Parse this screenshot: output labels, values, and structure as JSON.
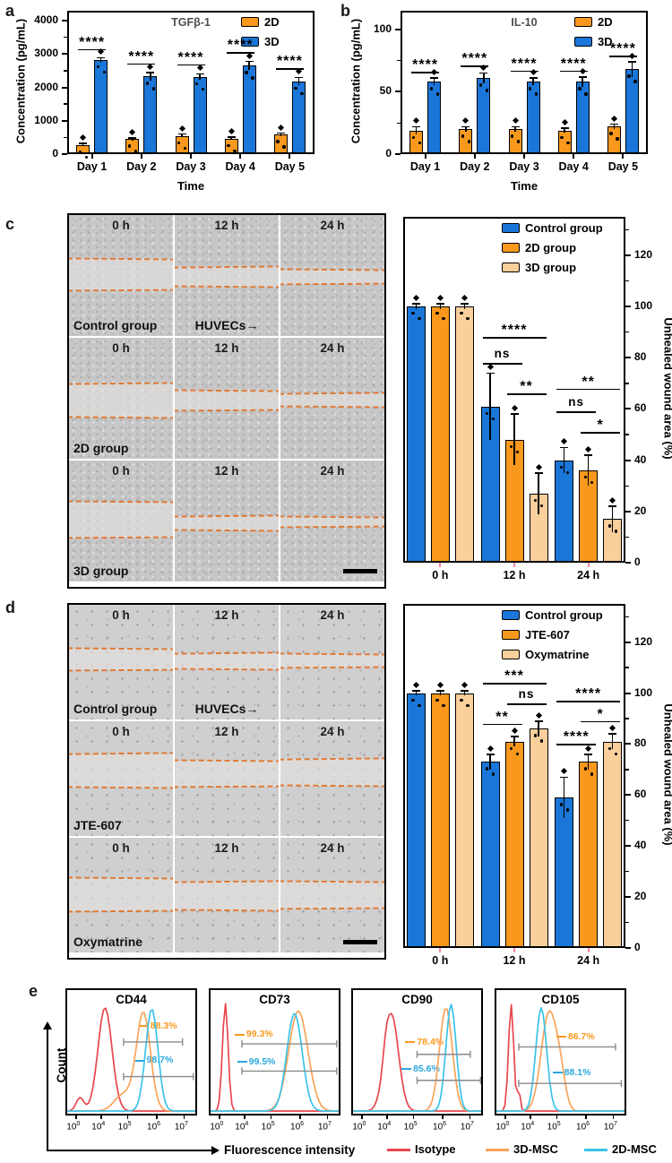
{
  "panels": {
    "a": "a",
    "b": "b",
    "c": "c",
    "d": "d",
    "e": "e"
  },
  "chart_data": {
    "tgfb1": {
      "type": "bar",
      "title": "TGFβ-1",
      "ylabel": "Concentration (pg/mL)",
      "xlabel": "Time",
      "categories": [
        "Day 1",
        "Day 2",
        "Day 3",
        "Day 4",
        "Day 5"
      ],
      "yticks": [
        0,
        1000,
        2000,
        3000,
        4000
      ],
      "ylim": [
        0,
        4300
      ],
      "minor": 500,
      "series": [
        {
          "name": "2D",
          "color": "#F8981D",
          "values": [
            280,
            450,
            550,
            470,
            580
          ],
          "errs": [
            40,
            40,
            50,
            40,
            50
          ]
        },
        {
          "name": "3D",
          "color": "#1A76D8",
          "values": [
            2820,
            2330,
            2320,
            2650,
            2180
          ],
          "errs": [
            70,
            120,
            90,
            130,
            120
          ]
        }
      ],
      "sig": [
        {
          "cat": 0,
          "y": 3150,
          "label": "****"
        },
        {
          "cat": 1,
          "y": 2720,
          "label": "****"
        },
        {
          "cat": 2,
          "y": 2700,
          "label": "****"
        },
        {
          "cat": 3,
          "y": 3060,
          "label": "****"
        },
        {
          "cat": 4,
          "y": 2580,
          "label": "****"
        }
      ]
    },
    "il10": {
      "type": "bar",
      "title": "IL-10",
      "ylabel": "Concentration (pg/mL)",
      "xlabel": "Time",
      "categories": [
        "Day 1",
        "Day 2",
        "Day 3",
        "Day 4",
        "Day 5"
      ],
      "yticks": [
        0,
        50,
        100
      ],
      "ylim": [
        0,
        115
      ],
      "minor": 25,
      "series": [
        {
          "name": "2D",
          "color": "#F8981D",
          "values": [
            19,
            20,
            20,
            19,
            22
          ],
          "errs": [
            3,
            2,
            2,
            2,
            2
          ]
        },
        {
          "name": "3D",
          "color": "#1A76D8",
          "values": [
            58,
            61,
            58,
            58,
            68
          ],
          "errs": [
            3,
            4,
            3,
            4,
            6
          ]
        }
      ],
      "sig": [
        {
          "cat": 0,
          "y": 66,
          "label": "****"
        },
        {
          "cat": 1,
          "y": 71,
          "label": "****"
        },
        {
          "cat": 2,
          "y": 67,
          "label": "****"
        },
        {
          "cat": 3,
          "y": 67,
          "label": "****"
        },
        {
          "cat": 4,
          "y": 79,
          "label": "****"
        }
      ]
    },
    "wound_msc": {
      "type": "bar",
      "ylabel": "Unhealed wound area (%)",
      "categories": [
        "0 h",
        "12 h",
        "24 h"
      ],
      "yticks": [
        0,
        20,
        40,
        60,
        80,
        100,
        120
      ],
      "ylim": [
        0,
        135
      ],
      "minor": 10,
      "series": [
        {
          "name": "Control group",
          "color": "#1A76D8",
          "values": [
            100,
            61,
            40
          ],
          "errs": [
            1,
            13,
            5
          ]
        },
        {
          "name": "2D group",
          "color": "#F8981D",
          "values": [
            100,
            48,
            36
          ],
          "errs": [
            1,
            10,
            6
          ]
        },
        {
          "name": "3D group",
          "color": "#F9CF9B",
          "values": [
            100,
            27,
            17
          ],
          "errs": [
            1,
            8,
            5
          ]
        }
      ],
      "sig": [
        {
          "cat": 1,
          "from": 0,
          "to": 2,
          "y": 88,
          "label": "****"
        },
        {
          "cat": 1,
          "from": 0,
          "to": 1,
          "y": 78,
          "label": "ns"
        },
        {
          "cat": 1,
          "from": 1,
          "to": 2,
          "y": 66,
          "label": "**"
        },
        {
          "cat": 2,
          "from": 0,
          "to": 2,
          "y": 68,
          "label": "**"
        },
        {
          "cat": 2,
          "from": 0,
          "to": 1,
          "y": 59,
          "label": "ns"
        },
        {
          "cat": 2,
          "from": 1,
          "to": 2,
          "y": 51,
          "label": "*"
        }
      ]
    },
    "wound_drug": {
      "type": "bar",
      "ylabel": "Unhealed wound area (%)",
      "categories": [
        "0 h",
        "12 h",
        "24 h"
      ],
      "yticks": [
        0,
        20,
        40,
        60,
        80,
        100,
        120
      ],
      "ylim": [
        0,
        135
      ],
      "minor": 10,
      "series": [
        {
          "name": "Control group",
          "color": "#1A76D8",
          "values": [
            100,
            73,
            59
          ],
          "errs": [
            1,
            3,
            8
          ]
        },
        {
          "name": "JTE-607",
          "color": "#F8981D",
          "values": [
            100,
            81,
            73
          ],
          "errs": [
            1,
            2,
            3
          ]
        },
        {
          "name": "Oxymatrine",
          "color": "#F9CF9B",
          "values": [
            100,
            86,
            81
          ],
          "errs": [
            1,
            3,
            3
          ]
        }
      ],
      "sig": [
        {
          "cat": 1,
          "from": 0,
          "to": 2,
          "y": 104,
          "label": "***"
        },
        {
          "cat": 1,
          "from": 1,
          "to": 2,
          "y": 96,
          "label": "ns"
        },
        {
          "cat": 1,
          "from": 0,
          "to": 1,
          "y": 88,
          "label": "**"
        },
        {
          "cat": 2,
          "from": 0,
          "to": 2,
          "y": 97,
          "label": "****"
        },
        {
          "cat": 2,
          "from": 1,
          "to": 2,
          "y": 89,
          "label": "*"
        },
        {
          "cat": 2,
          "from": 0,
          "to": 1,
          "y": 80,
          "label": "****"
        }
      ]
    },
    "flow_cytometry": {
      "type": "line",
      "ylabel": "Count",
      "xlabel": "Fluorescence intensity",
      "tick_exponents": [
        "0",
        "4",
        "5",
        "6",
        "7"
      ],
      "legend": [
        {
          "name": "Isotype",
          "color": "#E8484E"
        },
        {
          "name": "3D-MSC",
          "color": "#F9A45B"
        },
        {
          "name": "2D-MSC",
          "color": "#3BC3E8"
        }
      ],
      "panels": [
        {
          "marker": "CD44",
          "g3": {
            "pct": "88.3%",
            "x1": 0.44,
            "x2": 0.9,
            "y": 0.42,
            "lx": 0.67,
            "ly": 0.295
          },
          "g2": {
            "pct": "98.7%",
            "x1": 0.44,
            "x2": 0.985,
            "y": 0.7,
            "lx": 0.64,
            "ly": 0.575
          },
          "curves": [
            {
              "color": "#E8484E",
              "mean": 0.295,
              "sig": 0.055,
              "amp": 0.93,
              "m2": 0.1,
              "s2": 0.03,
              "a2": 0.12
            },
            {
              "color": "#F9A45B",
              "mean": 0.595,
              "sig": 0.055,
              "amp": 0.88,
              "m2": 0.44,
              "s2": 0.07,
              "a2": 0.15
            },
            {
              "color": "#3BC3E8",
              "mean": 0.66,
              "sig": 0.048,
              "amp": 0.92
            }
          ]
        },
        {
          "marker": "CD73",
          "g3": {
            "pct": "99.3%",
            "x1": 0.245,
            "x2": 0.985,
            "y": 0.435,
            "lx": 0.3,
            "ly": 0.365
          },
          "g2": {
            "pct": "99.5%",
            "x1": 0.245,
            "x2": 0.985,
            "y": 0.655,
            "lx": 0.32,
            "ly": 0.585
          },
          "curves": [
            {
              "color": "#E8484E",
              "mean": 0.115,
              "sig": 0.022,
              "amp": 0.97
            },
            {
              "color": "#F9A45B",
              "mean": 0.685,
              "sig": 0.075,
              "amp": 0.9
            },
            {
              "color": "#3BC3E8",
              "mean": 0.655,
              "sig": 0.06,
              "amp": 0.88
            }
          ]
        },
        {
          "marker": "CD90",
          "g3": {
            "pct": "78.4%",
            "x1": 0.5,
            "x2": 0.915,
            "y": 0.52,
            "lx": 0.52,
            "ly": 0.425
          },
          "g2": {
            "pct": "85.6%",
            "x1": 0.5,
            "x2": 0.995,
            "y": 0.73,
            "lx": 0.49,
            "ly": 0.645
          },
          "curves": [
            {
              "color": "#E8484E",
              "mean": 0.3,
              "sig": 0.055,
              "amp": 0.87,
              "m2": 0.255,
              "s2": 0.02,
              "a2": 0.1
            },
            {
              "color": "#F9A45B",
              "mean": 0.725,
              "sig": 0.05,
              "amp": 0.93
            },
            {
              "color": "#3BC3E8",
              "mean": 0.765,
              "sig": 0.04,
              "amp": 0.96
            }
          ]
        },
        {
          "marker": "CD105",
          "g3": {
            "pct": "86.7%",
            "x1": 0.175,
            "x2": 0.93,
            "y": 0.46,
            "lx": 0.58,
            "ly": 0.385
          },
          "g2": {
            "pct": "88.1%",
            "x1": 0.175,
            "x2": 0.975,
            "y": 0.755,
            "lx": 0.55,
            "ly": 0.675
          },
          "curves": [
            {
              "color": "#E8484E",
              "mean": 0.115,
              "sig": 0.02,
              "amp": 0.96,
              "m2": 0.175,
              "s2": 0.012,
              "a2": 0.18
            },
            {
              "color": "#F9A45B",
              "mean": 0.41,
              "sig": 0.06,
              "amp": 0.88,
              "m2": 0.5,
              "s2": 0.04,
              "a2": 0.25
            },
            {
              "color": "#3BC3E8",
              "mean": 0.35,
              "sig": 0.042,
              "amp": 0.93
            }
          ]
        }
      ]
    }
  },
  "micro_c": {
    "cells_label": "HUVECs",
    "cells_arrow": "→",
    "rows": [
      {
        "group": "Control group",
        "huvecs": true,
        "tiles": [
          {
            "time": "0 h",
            "l1": 36,
            "l2": 62
          },
          {
            "time": "12 h",
            "l1": 43,
            "l2": 59
          },
          {
            "time": "24 h",
            "l1": 45,
            "l2": 57
          }
        ]
      },
      {
        "group": "2D group",
        "tiles": [
          {
            "time": "0 h",
            "l1": 38,
            "l2": 66
          },
          {
            "time": "12 h",
            "l1": 44,
            "l2": 60
          },
          {
            "time": "24 h",
            "l1": 46,
            "l2": 57
          }
        ]
      },
      {
        "group": "3D group",
        "scalebar": true,
        "tiles": [
          {
            "time": "0 h",
            "l1": 34,
            "l2": 64
          },
          {
            "time": "12 h",
            "l1": 46,
            "l2": 58
          },
          {
            "time": "24 h",
            "l1": 47,
            "l2": 55
          }
        ]
      }
    ]
  },
  "micro_d": {
    "cells_label": "HUVECs",
    "cells_arrow": "→",
    "rows": [
      {
        "group": "Control group",
        "huvecs": true,
        "tiles": [
          {
            "time": "0 h",
            "l1": 38,
            "l2": 57
          },
          {
            "time": "12 h",
            "l1": 42,
            "l2": 56
          },
          {
            "time": "24 h",
            "l1": 43,
            "l2": 55
          }
        ]
      },
      {
        "group": "JTE-607",
        "tiles": [
          {
            "time": "0 h",
            "l1": 28,
            "l2": 58
          },
          {
            "time": "12 h",
            "l1": 34,
            "l2": 57
          },
          {
            "time": "24 h",
            "l1": 33,
            "l2": 56
          }
        ]
      },
      {
        "group": "Oxymatrine",
        "scalebar": true,
        "tiles": [
          {
            "time": "0 h",
            "l1": 35,
            "l2": 64
          },
          {
            "time": "12 h",
            "l1": 38,
            "l2": 63
          },
          {
            "time": "24 h",
            "l1": 38,
            "l2": 62
          }
        ]
      }
    ]
  },
  "colors": {
    "wound_line": "#E2762D",
    "cat_tick_pink": "#F2889E",
    "title_gray": "#4E4E4E"
  }
}
